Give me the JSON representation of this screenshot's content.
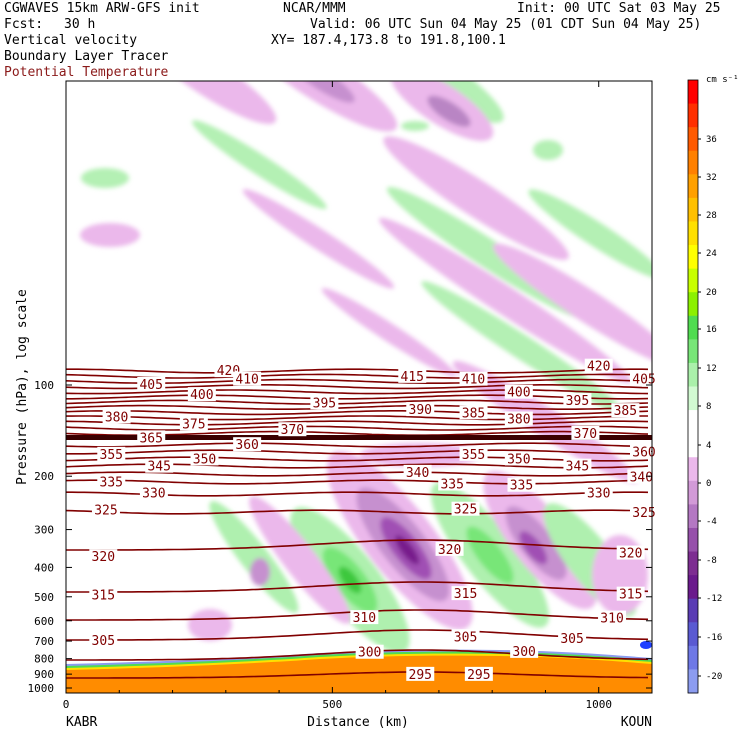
{
  "header": {
    "model": "CGWAVES 15km ARW-GFS init",
    "center": "NCAR/MMM",
    "init": "Init: 00 UTC Sat 03 May 25",
    "fcst_label": "Fcst:",
    "fcst_value": "30 h",
    "valid": "Valid: 06 UTC Sun 04 May 25 (01 CDT Sun 04 May 25)",
    "field1": "Vertical velocity",
    "field2": "Boundary Layer Tracer",
    "field3": "Potential Temperature",
    "xy": "XY= 187.4,173.8 to 191.8,100.1"
  },
  "colors": {
    "theta": "#800000",
    "pink_light": "#ebb8eb",
    "purple": "#a050b4",
    "green_light": "#aff0af",
    "green": "#50dc50",
    "orange": "#ff8c00",
    "red": "#ff0000"
  },
  "chart_data": {
    "type": "cross-section",
    "ylabel": "Pressure (hPa), log scale",
    "xlabel": "Distance (km)",
    "y_scale": "log",
    "y_ticks": [
      "100",
      "200",
      "300",
      "400",
      "500",
      "600",
      "700",
      "800",
      "900",
      "1000"
    ],
    "x_ticks": [
      "0",
      "500",
      "1000"
    ],
    "xlim": [
      0,
      1100
    ],
    "left_station": "KABR",
    "right_station": "KOUN",
    "colorbar": {
      "unit": "cm s⁻¹",
      "labels": [
        "36",
        "32",
        "28",
        "24",
        "20",
        "16",
        "12",
        "8",
        "4",
        "0",
        "-4",
        "-8",
        "-12",
        "-16",
        "-20"
      ],
      "colors": [
        "#ff0000",
        "#ff3000",
        "#ff5a00",
        "#ff8000",
        "#ffa000",
        "#ffc000",
        "#ffe000",
        "#ffff00",
        "#c8ff00",
        "#8cf000",
        "#50dc50",
        "#78e678",
        "#aaf0aa",
        "#d2fad2",
        "#ffffff",
        "#ffffff",
        "#ebb8eb",
        "#d29ad7",
        "#b478c3",
        "#9650aa",
        "#7d2d91",
        "#6a1a8c",
        "#5a3cb4",
        "#5a5ad2",
        "#6e78e6",
        "#8c9cf0"
      ]
    },
    "theta_labels": [
      {
        "text": "420",
        "x": 305,
        "p": 90
      },
      {
        "text": "415",
        "x": 650,
        "p": 94
      },
      {
        "text": "410",
        "x": 340,
        "p": 96
      },
      {
        "text": "410",
        "x": 765,
        "p": 96
      },
      {
        "text": "405",
        "x": 160,
        "p": 100
      },
      {
        "text": "405",
        "x": 1085,
        "p": 96
      },
      {
        "text": "420",
        "x": 1000,
        "p": 87
      },
      {
        "text": "400",
        "x": 255,
        "p": 108
      },
      {
        "text": "400",
        "x": 850,
        "p": 106
      },
      {
        "text": "395",
        "x": 485,
        "p": 115
      },
      {
        "text": "395",
        "x": 960,
        "p": 113
      },
      {
        "text": "390",
        "x": 665,
        "p": 121
      },
      {
        "text": "385",
        "x": 765,
        "p": 124
      },
      {
        "text": "385",
        "x": 1050,
        "p": 122
      },
      {
        "text": "380",
        "x": 95,
        "p": 128
      },
      {
        "text": "380",
        "x": 850,
        "p": 130
      },
      {
        "text": "375",
        "x": 240,
        "p": 135
      },
      {
        "text": "370",
        "x": 425,
        "p": 141
      },
      {
        "text": "370",
        "x": 975,
        "p": 145
      },
      {
        "text": "365",
        "x": 160,
        "p": 150
      },
      {
        "text": "360",
        "x": 340,
        "p": 158
      },
      {
        "text": "360",
        "x": 1085,
        "p": 167
      },
      {
        "text": "355",
        "x": 85,
        "p": 170
      },
      {
        "text": "355",
        "x": 765,
        "p": 170
      },
      {
        "text": "350",
        "x": 260,
        "p": 176
      },
      {
        "text": "350",
        "x": 850,
        "p": 176
      },
      {
        "text": "345",
        "x": 175,
        "p": 186
      },
      {
        "text": "345",
        "x": 960,
        "p": 186
      },
      {
        "text": "340",
        "x": 660,
        "p": 195
      },
      {
        "text": "340",
        "x": 1080,
        "p": 202
      },
      {
        "text": "335",
        "x": 85,
        "p": 210
      },
      {
        "text": "335",
        "x": 725,
        "p": 213
      },
      {
        "text": "335",
        "x": 855,
        "p": 215
      },
      {
        "text": "330",
        "x": 165,
        "p": 228
      },
      {
        "text": "330",
        "x": 1000,
        "p": 228
      },
      {
        "text": "325",
        "x": 75,
        "p": 260
      },
      {
        "text": "325",
        "x": 750,
        "p": 258
      },
      {
        "text": "325",
        "x": 1085,
        "p": 265
      },
      {
        "text": "320",
        "x": 70,
        "p": 370
      },
      {
        "text": "320",
        "x": 720,
        "p": 350
      },
      {
        "text": "320",
        "x": 1060,
        "p": 360
      },
      {
        "text": "315",
        "x": 70,
        "p": 495
      },
      {
        "text": "315",
        "x": 750,
        "p": 490
      },
      {
        "text": "315",
        "x": 1060,
        "p": 492
      },
      {
        "text": "310",
        "x": 560,
        "p": 588
      },
      {
        "text": "310",
        "x": 1025,
        "p": 590
      },
      {
        "text": "305",
        "x": 70,
        "p": 700
      },
      {
        "text": "305",
        "x": 750,
        "p": 680
      },
      {
        "text": "305",
        "x": 950,
        "p": 690
      },
      {
        "text": "300",
        "x": 570,
        "p": 765
      },
      {
        "text": "300",
        "x": 860,
        "p": 760
      },
      {
        "text": "295",
        "x": 665,
        "p": 905
      },
      {
        "text": "295",
        "x": 775,
        "p": 905
      }
    ]
  }
}
